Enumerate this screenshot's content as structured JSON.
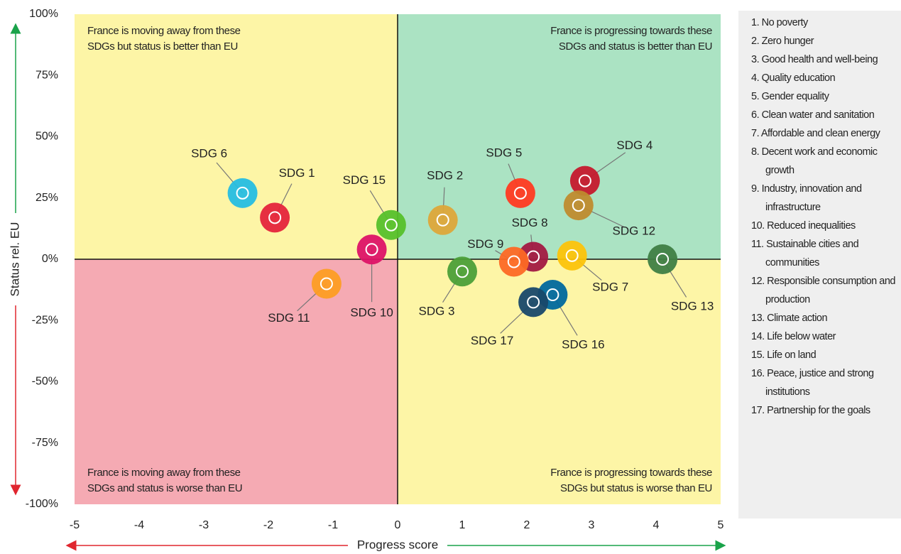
{
  "chart_data": {
    "type": "scatter",
    "xlabel": "Progress score",
    "ylabel": "Status rel. EU",
    "xlim": [
      -5,
      5
    ],
    "ylim": [
      -100,
      100
    ],
    "xticks": [
      -5,
      -4,
      -3,
      -2,
      -1,
      0,
      1,
      2,
      3,
      4,
      5
    ],
    "yticks": [
      {
        "value": 100,
        "label": "100%"
      },
      {
        "value": 75,
        "label": "75%"
      },
      {
        "value": 50,
        "label": "50%"
      },
      {
        "value": 25,
        "label": "25%"
      },
      {
        "value": 0,
        "label": "0%"
      },
      {
        "value": -25,
        "label": "-25%"
      },
      {
        "value": -50,
        "label": "-50%"
      },
      {
        "value": -75,
        "label": "-75%"
      },
      {
        "value": -100,
        "label": "-100%"
      }
    ],
    "quadrants": [
      {
        "lines": [
          "France is moving away from these",
          "SDGs but status is better than EU"
        ],
        "color": "#fdf5a6"
      },
      {
        "lines": [
          "France is progressing towards these",
          "SDGs and status is better than EU"
        ],
        "color": "#abe3c3"
      },
      {
        "lines": [
          "France is moving away from these",
          "SDGs and status is worse than EU"
        ],
        "color": "#f5aab3"
      },
      {
        "lines": [
          "France is progressing towards these",
          "SDGs but status is worse than EU"
        ],
        "color": "#fdf5a6"
      }
    ],
    "points": [
      {
        "label": "SDG 6",
        "x": -2.4,
        "y": 27,
        "color": "#26bde2"
      },
      {
        "label": "SDG 1",
        "x": -1.9,
        "y": 17,
        "color": "#e5243b"
      },
      {
        "label": "SDG 15",
        "x": -0.1,
        "y": 14,
        "color": "#56c02b"
      },
      {
        "label": "SDG 10",
        "x": -0.4,
        "y": 4,
        "color": "#dd1367"
      },
      {
        "label": "SDG 11",
        "x": -1.1,
        "y": -10,
        "color": "#fd9d24"
      },
      {
        "label": "SDG 2",
        "x": 0.7,
        "y": 16,
        "color": "#dda63a"
      },
      {
        "label": "SDG 3",
        "x": 1.0,
        "y": -5,
        "color": "#4c9f38"
      },
      {
        "label": "SDG 5",
        "x": 1.9,
        "y": 27,
        "color": "#ff3a21"
      },
      {
        "label": "SDG 4",
        "x": 2.9,
        "y": 32,
        "color": "#c5192d"
      },
      {
        "label": "SDG 12",
        "x": 2.8,
        "y": 22,
        "color": "#bf8b2e"
      },
      {
        "label": "SDG 8",
        "x": 2.1,
        "y": 1,
        "color": "#a21942"
      },
      {
        "label": "SDG 9",
        "x": 1.8,
        "y": -1,
        "color": "#fd6925"
      },
      {
        "label": "SDG 7",
        "x": 2.7,
        "y": 1.5,
        "color": "#fcc30b"
      },
      {
        "label": "SDG 13",
        "x": 4.1,
        "y": 0,
        "color": "#3f7e44"
      },
      {
        "label": "SDG 16",
        "x": 2.4,
        "y": -14.5,
        "color": "#00689d"
      },
      {
        "label": "SDG 17",
        "x": 2.1,
        "y": -17.5,
        "color": "#19486a"
      }
    ],
    "legend": [
      "1. No poverty",
      "2. Zero hunger",
      "3. Good health and well-being",
      "4. Quality education",
      "5. Gender equality",
      "6. Clean water and sanitation",
      "7. Affordable and clean energy",
      "8. Decent work and economic growth",
      "9. Industry, innovation and infrastructure",
      "10. Reduced inequalities",
      "11. Sustainable cities and communities",
      "12. Responsible consumption and production",
      "13. Climate action",
      "14. Life below water",
      "15. Life on land",
      "16. Peace, justice and strong institutions",
      "17. Partnership for the goals"
    ]
  }
}
